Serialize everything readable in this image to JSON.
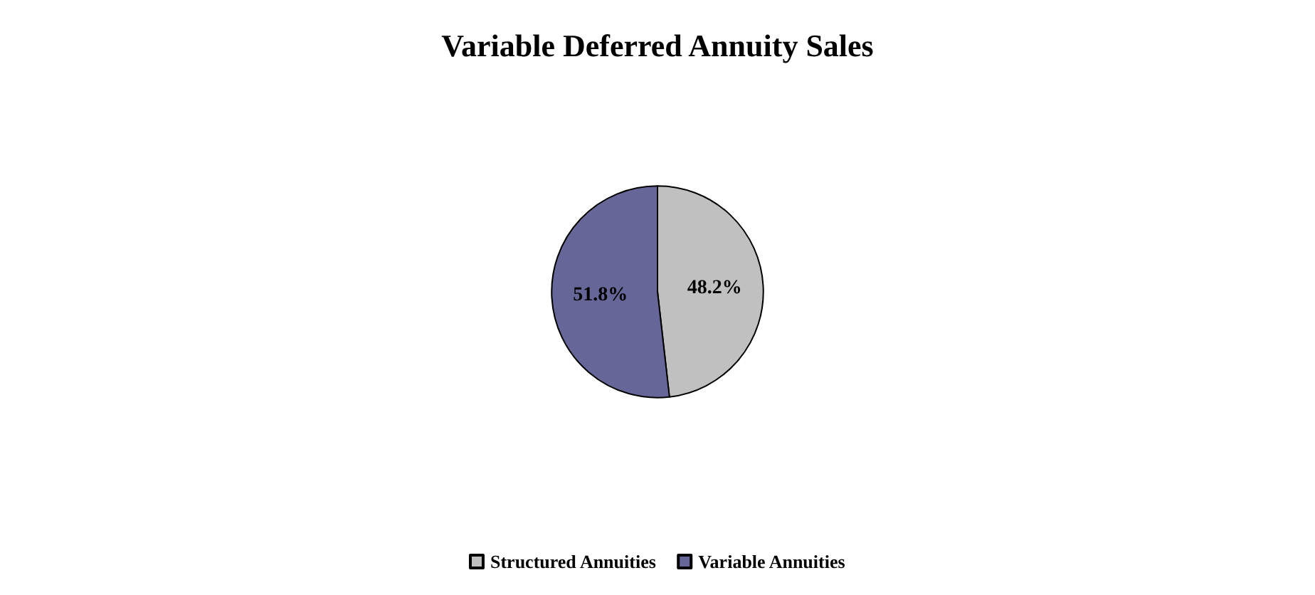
{
  "chart_data": {
    "type": "pie",
    "title": "Variable Deferred Annuity Sales",
    "categories": [
      "Structured Annuities",
      "Variable Annuities"
    ],
    "values": [
      48.2,
      51.8
    ],
    "value_labels": [
      "48.2%",
      "51.8%"
    ],
    "colors": [
      "#c0c0c0",
      "#666699"
    ],
    "legend": "bottom"
  }
}
